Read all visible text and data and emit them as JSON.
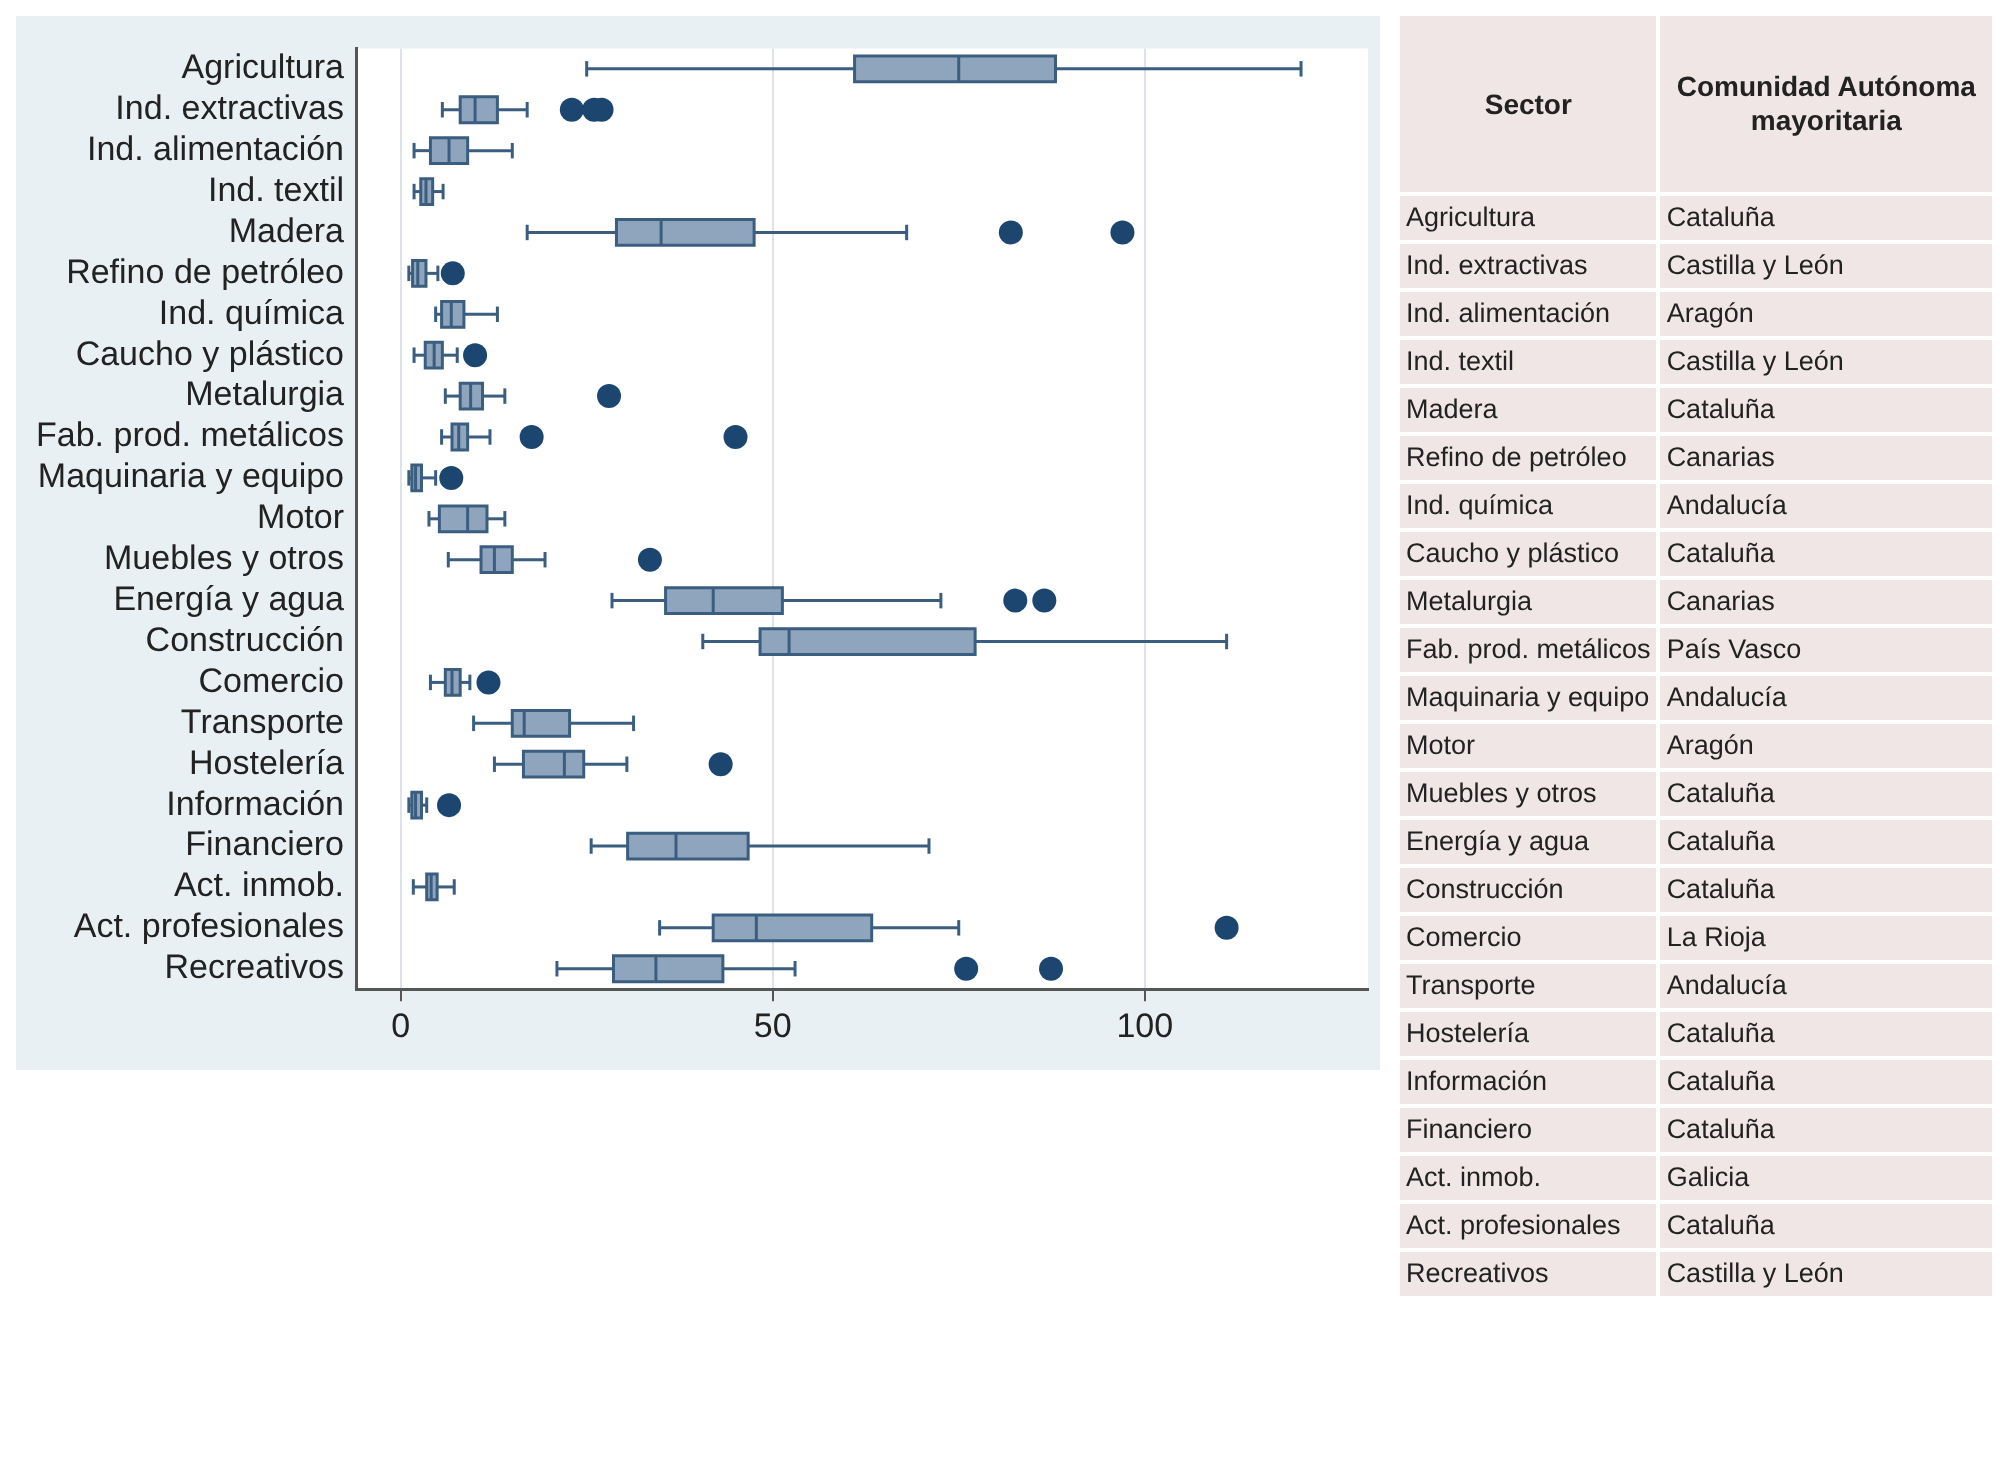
{
  "chart_data": [
    {
      "type": "box",
      "orientation": "horizontal",
      "color": "#8fa5bd",
      "grid": "x",
      "xlim": [
        -6,
        130
      ],
      "xticks": [
        0,
        50,
        100
      ],
      "categories": [
        "Agricultura",
        "Ind. extractivas",
        "Ind. alimentación",
        "Ind. textil",
        "Madera",
        "Refino de petróleo",
        "Ind. química",
        "Caucho y plástico",
        "Metalurgia",
        "Fab. prod. metálicos",
        "Maquinaria y equipo",
        "Motor",
        "Muebles y otros",
        "Energía y agua",
        "Construcción",
        "Comercio",
        "Transporte",
        "Hostelería",
        "Información",
        "Financiero",
        "Act. inmob.",
        "Act. profesionales",
        "Recreativos"
      ],
      "boxes": [
        {
          "low": 25,
          "q1": 61,
          "median": 75,
          "q3": 88,
          "high": 121
        },
        {
          "low": 5.6,
          "q1": 8,
          "median": 10,
          "q3": 13,
          "high": 17,
          "outliers": [
            23,
            26,
            27
          ]
        },
        {
          "low": 1.8,
          "q1": 4,
          "median": 6.5,
          "q3": 9,
          "high": 15
        },
        {
          "low": 1.8,
          "q1": 2.7,
          "median": 3.4,
          "q3": 4.3,
          "high": 5.7
        },
        {
          "low": 17,
          "q1": 29,
          "median": 35,
          "q3": 47.5,
          "high": 68,
          "outliers": [
            82,
            97
          ]
        },
        {
          "low": 1.1,
          "q1": 1.6,
          "median": 2.3,
          "q3": 3.4,
          "high": 5,
          "outliers": [
            7
          ]
        },
        {
          "low": 4.7,
          "q1": 5.5,
          "median": 6.8,
          "q3": 8.5,
          "high": 13
        },
        {
          "low": 1.8,
          "q1": 3.3,
          "median": 4.5,
          "q3": 5.6,
          "high": 7.6,
          "outliers": [
            10
          ]
        },
        {
          "low": 6,
          "q1": 8,
          "median": 9.4,
          "q3": 11,
          "high": 14,
          "outliers": [
            28
          ]
        },
        {
          "low": 5.5,
          "q1": 6.9,
          "median": 7.8,
          "q3": 9,
          "high": 12,
          "outliers": [
            17.6,
            45
          ]
        },
        {
          "low": 1.1,
          "q1": 1.5,
          "median": 2,
          "q3": 2.8,
          "high": 4.7,
          "outliers": [
            6.8
          ]
        },
        {
          "low": 3.8,
          "q1": 5.2,
          "median": 9,
          "q3": 11.6,
          "high": 14
        },
        {
          "low": 6.4,
          "q1": 10.8,
          "median": 12.6,
          "q3": 15,
          "high": 19.4,
          "outliers": [
            33.5
          ]
        },
        {
          "low": 28.4,
          "q1": 35.6,
          "median": 42,
          "q3": 51.3,
          "high": 72.6,
          "outliers": [
            82.6,
            86.5
          ]
        },
        {
          "low": 40.6,
          "q1": 48.3,
          "median": 52.2,
          "q3": 77.2,
          "high": 111
        },
        {
          "low": 4,
          "q1": 6,
          "median": 6.9,
          "q3": 8,
          "high": 9.3,
          "outliers": [
            11.8
          ]
        },
        {
          "low": 9.8,
          "q1": 15,
          "median": 16.6,
          "q3": 22.7,
          "high": 31.3
        },
        {
          "low": 12.6,
          "q1": 16.5,
          "median": 22,
          "q3": 24.6,
          "high": 30.4,
          "outliers": [
            43
          ]
        },
        {
          "low": 1.1,
          "q1": 1.5,
          "median": 2,
          "q3": 2.8,
          "high": 3.5,
          "outliers": [
            6.5
          ]
        },
        {
          "low": 25.6,
          "q1": 30.5,
          "median": 37,
          "q3": 46.7,
          "high": 71
        },
        {
          "low": 1.7,
          "q1": 3.5,
          "median": 4.1,
          "q3": 4.9,
          "high": 7.2
        },
        {
          "low": 34.8,
          "q1": 42,
          "median": 47.8,
          "q3": 63.3,
          "high": 75,
          "outliers": [
            111
          ]
        },
        {
          "low": 21,
          "q1": 28.6,
          "median": 34.3,
          "q3": 43.3,
          "high": 53,
          "outliers": [
            76,
            87.4
          ]
        }
      ]
    },
    {
      "type": "other",
      "annotations": [
        "Sector",
        "Comunidad Autónoma mayoritaria",
        "Agricultura",
        "Cataluña",
        "Ind. extractivas",
        "Castilla y León",
        "Ind. alimentación",
        "Aragón",
        "Ind. textil",
        "Castilla y León",
        "Madera",
        "Cataluña",
        "Refino de petróleo",
        "Canarias",
        "Ind. química",
        "Andalucía",
        "Caucho y plástico",
        "Cataluña",
        "Metalurgia",
        "Canarias",
        "Fab. prod. metálicos",
        "País Vasco",
        "Maquinaria y equipo",
        "Andalucía",
        "Motor",
        "Aragón",
        "Muebles y otros",
        "Cataluña",
        "Energía y agua",
        "Cataluña",
        "Construcción",
        "Cataluña",
        "Comercio",
        "La Rioja",
        "Transporte",
        "Andalucía",
        "Hostelería",
        "Cataluña",
        "Información",
        "Cataluña",
        "Financiero",
        "Cataluña",
        "Act. inmob.",
        "Galicia",
        "Act. profesionales",
        "Cataluña",
        "Recreativos",
        "Castilla y León"
      ]
    }
  ]
}
